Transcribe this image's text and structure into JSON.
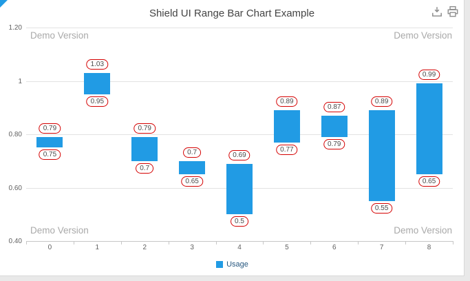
{
  "page": {
    "watermark": "Demo Version"
  },
  "toolbar": {
    "icons": [
      {
        "name": "export-icon"
      },
      {
        "name": "print-icon"
      }
    ]
  },
  "legend": {
    "items": [
      {
        "label": "Usage",
        "color": "#219be4"
      }
    ]
  },
  "chart_data": {
    "type": "bar",
    "subtype": "range-bar",
    "title": "Shield UI Range Bar Chart Example",
    "categories": [
      "0",
      "1",
      "2",
      "3",
      "4",
      "5",
      "6",
      "7",
      "8"
    ],
    "series": [
      {
        "name": "Usage",
        "color": "#219be4",
        "values": [
          [
            0.75,
            0.79
          ],
          [
            0.95,
            1.03
          ],
          [
            0.7,
            0.79
          ],
          [
            0.65,
            0.7
          ],
          [
            0.5,
            0.69
          ],
          [
            0.77,
            0.89
          ],
          [
            0.79,
            0.87
          ],
          [
            0.55,
            0.89
          ],
          [
            0.65,
            0.99
          ]
        ]
      }
    ],
    "xlabel": "",
    "ylabel": "",
    "ylim": [
      0.4,
      1.2
    ],
    "yticks": [
      0.4,
      0.6,
      0.8,
      1,
      1.2
    ],
    "ytick_labels": [
      "0.40",
      "0.60",
      "0.80",
      "1",
      "1.20"
    ],
    "grid": true,
    "legend_position": "bottom",
    "value_labels": "low and high value of each range shown in red-outlined boxes above and below each bar"
  },
  "colors": {
    "bar": "#219be4",
    "value_label_border": "#d40000",
    "gridline": "#e2e2e2",
    "watermark": "#a9a9a9",
    "legend_text": "#25567e"
  }
}
